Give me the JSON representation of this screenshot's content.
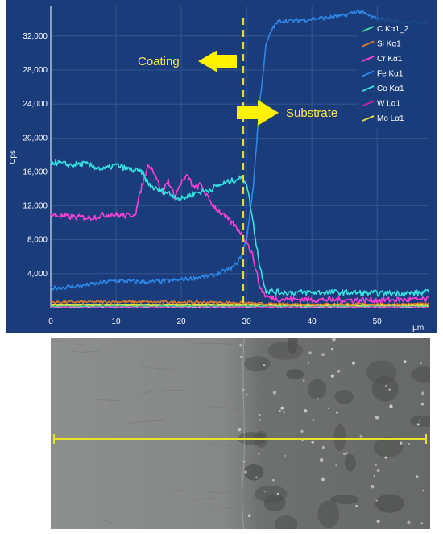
{
  "chart_data": {
    "type": "line",
    "ylabel": "Cps",
    "xunit": "µm",
    "xlim": [
      0,
      58
    ],
    "ylim": [
      0,
      35500
    ],
    "xticks": [
      0,
      10,
      20,
      30,
      40,
      50
    ],
    "yticks": [
      4000,
      8000,
      12000,
      16000,
      20000,
      24000,
      28000,
      32000
    ],
    "ytick_labels": [
      "4,000",
      "8,000",
      "12,000",
      "16,000",
      "20,000",
      "24,000",
      "28,000",
      "32,000"
    ],
    "grid": true,
    "background": "#1a3c7a",
    "legend_position": "top-right",
    "series": [
      {
        "name": "C Kα1_2",
        "color": "#49d6a0",
        "x": [
          0,
          58
        ],
        "y": [
          200,
          200
        ]
      },
      {
        "name": "Si Kα1",
        "color": "#e07b2a",
        "x": [
          0,
          10,
          20,
          28,
          31,
          34,
          58
        ],
        "y": [
          650,
          700,
          650,
          600,
          500,
          420,
          420
        ]
      },
      {
        "name": "Cr Kα1",
        "color": "#ff3fd6",
        "x": [
          0,
          3,
          6,
          9,
          12,
          13,
          14,
          15,
          16,
          17,
          18,
          19,
          20,
          21,
          22,
          23,
          24,
          25,
          26,
          27,
          28,
          29,
          30,
          31,
          32,
          33,
          35,
          40,
          45,
          50,
          55,
          58
        ],
        "y": [
          10900,
          10700,
          10600,
          11000,
          10800,
          11200,
          14500,
          17000,
          15800,
          13500,
          15000,
          13000,
          14800,
          15500,
          14000,
          14500,
          13000,
          12000,
          11200,
          10500,
          9800,
          9000,
          7800,
          6000,
          2500,
          1300,
          1000,
          950,
          900,
          900,
          950,
          950
        ]
      },
      {
        "name": "Fe Kα1",
        "color": "#2f86e8",
        "x": [
          0,
          5,
          10,
          15,
          20,
          25,
          28,
          29,
          30,
          31,
          32,
          33,
          34,
          35,
          37,
          40,
          45,
          47,
          50,
          55,
          58
        ],
        "y": [
          2300,
          2600,
          3200,
          3000,
          3300,
          3800,
          4800,
          5800,
          8000,
          14000,
          24000,
          31000,
          33000,
          33800,
          33800,
          34000,
          34400,
          35000,
          34000,
          33600,
          33600
        ]
      },
      {
        "name": "Co Kα1",
        "color": "#35e0e0",
        "x": [
          0,
          3,
          5,
          8,
          10,
          12,
          14,
          15,
          16,
          18,
          20,
          22,
          24,
          26,
          28,
          29,
          30,
          31,
          32,
          33,
          35,
          40,
          45,
          50,
          55,
          58
        ],
        "y": [
          17200,
          16800,
          17000,
          16300,
          16800,
          16300,
          16000,
          14500,
          14000,
          13500,
          12800,
          13500,
          13800,
          14500,
          15000,
          15300,
          14800,
          10000,
          5000,
          2000,
          1800,
          1800,
          1800,
          1700,
          1700,
          1800
        ]
      },
      {
        "name": "W Lα1",
        "color": "#c425a8",
        "x": [
          0,
          58
        ],
        "y": [
          100,
          100
        ]
      },
      {
        "name": "Mo Lα1",
        "color": "#e8e03a",
        "x": [
          0,
          30,
          40,
          58
        ],
        "y": [
          350,
          350,
          300,
          300
        ]
      }
    ],
    "annotations": [
      {
        "text": "Coating",
        "color": "#ffe94a"
      },
      {
        "text": "Substrate",
        "color": "#ffe94a"
      }
    ],
    "boundary_x": 29.5
  },
  "sem_image": {
    "description_hidden": "",
    "line_color": "#e6e12a"
  }
}
